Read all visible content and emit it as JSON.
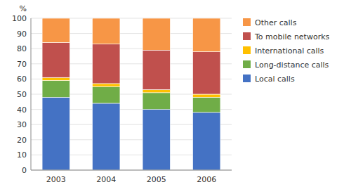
{
  "chart_data": {
    "type": "bar",
    "stacked": true,
    "ylabel": "%",
    "categories": [
      "2003",
      "2004",
      "2005",
      "2006"
    ],
    "series": [
      {
        "name": "Local calls",
        "color": "#4472C4",
        "values": [
          48,
          44,
          40,
          38
        ]
      },
      {
        "name": "Long-distance calls",
        "color": "#70AD47",
        "values": [
          11,
          11,
          11,
          10
        ]
      },
      {
        "name": "International calls",
        "color": "#FFC000",
        "values": [
          2,
          2,
          2,
          2
        ]
      },
      {
        "name": "To mobile networks",
        "color": "#C0504D",
        "values": [
          23,
          26,
          26,
          28
        ]
      },
      {
        "name": "Other calls",
        "color": "#F79646",
        "values": [
          16,
          17,
          21,
          22
        ]
      }
    ],
    "ylim": [
      0,
      100
    ],
    "yticks": [
      0,
      10,
      20,
      30,
      40,
      50,
      60,
      70,
      80,
      90,
      100
    ],
    "grid": true,
    "legend": "right"
  }
}
